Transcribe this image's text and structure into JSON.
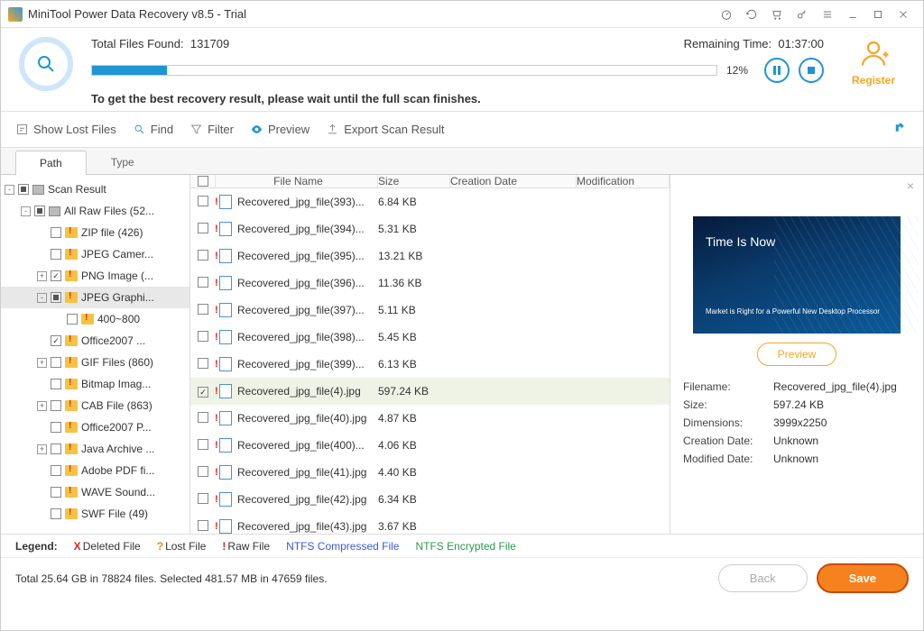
{
  "window": {
    "title": "MiniTool Power Data Recovery v8.5 - Trial"
  },
  "scan": {
    "found_label": "Total Files Found:",
    "found_count": "131709",
    "remaining_label": "Remaining Time:",
    "remaining_time": "01:37:00",
    "percent": "12%",
    "progress_pct": 12,
    "message": "To get the best recovery result, please wait until the full scan finishes.",
    "register": "Register"
  },
  "toolbar": {
    "show_lost": "Show Lost Files",
    "find": "Find",
    "filter": "Filter",
    "preview": "Preview",
    "export": "Export Scan Result"
  },
  "tabs": {
    "path": "Path",
    "type": "Type"
  },
  "tree": [
    {
      "indent": 0,
      "tw": "-",
      "cb": "partial",
      "ico": "drive",
      "label": "Scan Result"
    },
    {
      "indent": 1,
      "tw": "-",
      "cb": "partial",
      "ico": "drive",
      "label": "All Raw Files (52..."
    },
    {
      "indent": 2,
      "tw": "",
      "cb": "",
      "ico": "folder-red",
      "label": "ZIP file (426)"
    },
    {
      "indent": 2,
      "tw": "",
      "cb": "",
      "ico": "folder-red",
      "label": "JPEG Camer..."
    },
    {
      "indent": 2,
      "tw": "+",
      "cb": "checked",
      "ico": "folder-red",
      "label": "PNG Image (..."
    },
    {
      "indent": 2,
      "tw": "-",
      "cb": "partial",
      "ico": "folder-red",
      "label": "JPEG Graphi...",
      "sel": true
    },
    {
      "indent": 3,
      "tw": "",
      "cb": "",
      "ico": "folder-red",
      "label": "400~800"
    },
    {
      "indent": 2,
      "tw": "",
      "cb": "checked",
      "ico": "folder-red",
      "label": "Office2007 ..."
    },
    {
      "indent": 2,
      "tw": "+",
      "cb": "",
      "ico": "folder-red",
      "label": "GIF Files (860)"
    },
    {
      "indent": 2,
      "tw": "",
      "cb": "",
      "ico": "folder-red",
      "label": "Bitmap Imag..."
    },
    {
      "indent": 2,
      "tw": "+",
      "cb": "",
      "ico": "folder-red",
      "label": "CAB File (863)"
    },
    {
      "indent": 2,
      "tw": "",
      "cb": "",
      "ico": "folder-red",
      "label": "Office2007 P..."
    },
    {
      "indent": 2,
      "tw": "+",
      "cb": "",
      "ico": "folder-red",
      "label": "Java Archive ..."
    },
    {
      "indent": 2,
      "tw": "",
      "cb": "",
      "ico": "folder-red",
      "label": "Adobe PDF fi..."
    },
    {
      "indent": 2,
      "tw": "",
      "cb": "",
      "ico": "folder-red",
      "label": "WAVE Sound..."
    },
    {
      "indent": 2,
      "tw": "",
      "cb": "",
      "ico": "folder-red",
      "label": "SWF File (49)"
    }
  ],
  "columns": {
    "name": "File Name",
    "size": "Size",
    "date": "Creation Date",
    "mod": "Modification"
  },
  "files": [
    {
      "name": "Recovered_jpg_file(393)...",
      "size": "6.84 KB",
      "cb": ""
    },
    {
      "name": "Recovered_jpg_file(394)...",
      "size": "5.31 KB",
      "cb": ""
    },
    {
      "name": "Recovered_jpg_file(395)...",
      "size": "13.21 KB",
      "cb": ""
    },
    {
      "name": "Recovered_jpg_file(396)...",
      "size": "11.36 KB",
      "cb": ""
    },
    {
      "name": "Recovered_jpg_file(397)...",
      "size": "5.11 KB",
      "cb": ""
    },
    {
      "name": "Recovered_jpg_file(398)...",
      "size": "5.45 KB",
      "cb": ""
    },
    {
      "name": "Recovered_jpg_file(399)...",
      "size": "6.13 KB",
      "cb": ""
    },
    {
      "name": "Recovered_jpg_file(4).jpg",
      "size": "597.24 KB",
      "cb": "checked",
      "sel": true
    },
    {
      "name": "Recovered_jpg_file(40).jpg",
      "size": "4.87 KB",
      "cb": ""
    },
    {
      "name": "Recovered_jpg_file(400)...",
      "size": "4.06 KB",
      "cb": ""
    },
    {
      "name": "Recovered_jpg_file(41).jpg",
      "size": "4.40 KB",
      "cb": ""
    },
    {
      "name": "Recovered_jpg_file(42).jpg",
      "size": "6.34 KB",
      "cb": ""
    },
    {
      "name": "Recovered_jpg_file(43).jpg",
      "size": "3.67 KB",
      "cb": ""
    }
  ],
  "preview": {
    "button": "Preview",
    "thumb_title": "Time Is Now",
    "thumb_sub": "Market is Right for a Powerful New Desktop Processor",
    "meta": {
      "filename_k": "Filename:",
      "filename_v": "Recovered_jpg_file(4).jpg",
      "size_k": "Size:",
      "size_v": "597.24 KB",
      "dim_k": "Dimensions:",
      "dim_v": "3999x2250",
      "cdate_k": "Creation Date:",
      "cdate_v": "Unknown",
      "mdate_k": "Modified Date:",
      "mdate_v": "Unknown"
    }
  },
  "legend": {
    "title": "Legend:",
    "deleted": "Deleted File",
    "lost": "Lost File",
    "raw": "Raw File",
    "ntfs": "NTFS Compressed File",
    "enc": "NTFS Encrypted File"
  },
  "footer": {
    "total": "Total 25.64 GB in 78824 files.  Selected 481.57 MB in 47659 files.",
    "back": "Back",
    "save": "Save"
  },
  "colors": {
    "accent": "#f6821f",
    "blue": "#1f95d4"
  }
}
